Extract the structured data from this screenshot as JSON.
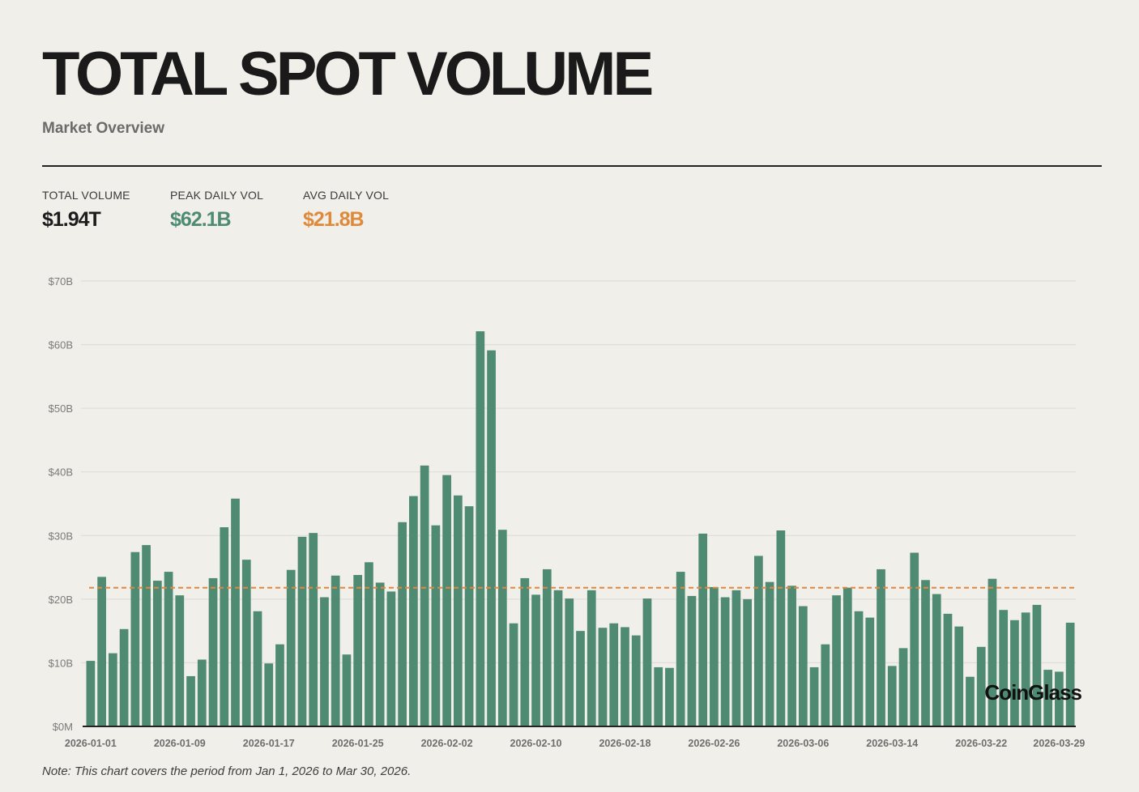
{
  "header": {
    "title": "TOTAL SPOT VOLUME",
    "subtitle": "Market Overview"
  },
  "stats": {
    "total": {
      "label": "TOTAL VOLUME",
      "value": "$1.94T"
    },
    "peak": {
      "label": "PEAK DAILY VOL",
      "value": "$62.1B"
    },
    "avg": {
      "label": "AVG DAILY VOL",
      "value": "$21.8B"
    }
  },
  "colors": {
    "bar": "#4e8b72",
    "avg_line": "#e0883f",
    "total": "#1c1c1c",
    "peak": "#4e8b72",
    "avg": "#df8a3a",
    "grid": "#dcdad4"
  },
  "watermark": "CoinGlass",
  "note": "Note: This chart covers the period from Jan 1, 2026 to Mar 30, 2026.",
  "chart_data": {
    "type": "bar",
    "title": "TOTAL SPOT VOLUME",
    "xlabel": "",
    "ylabel": "",
    "ylim": [
      0,
      70
    ],
    "unit": "B",
    "grid": true,
    "y_ticks": [
      {
        "value": 0,
        "label": "$0M"
      },
      {
        "value": 10,
        "label": "$10B"
      },
      {
        "value": 20,
        "label": "$20B"
      },
      {
        "value": 30,
        "label": "$30B"
      },
      {
        "value": 40,
        "label": "$40B"
      },
      {
        "value": 50,
        "label": "$50B"
      },
      {
        "value": 60,
        "label": "$60B"
      },
      {
        "value": 70,
        "label": "$70B"
      }
    ],
    "x_tick_labels": [
      {
        "index": 0,
        "label": "2026-01-01"
      },
      {
        "index": 8,
        "label": "2026-01-09"
      },
      {
        "index": 16,
        "label": "2026-01-17"
      },
      {
        "index": 24,
        "label": "2026-01-25"
      },
      {
        "index": 32,
        "label": "2026-02-02"
      },
      {
        "index": 40,
        "label": "2026-02-10"
      },
      {
        "index": 48,
        "label": "2026-02-18"
      },
      {
        "index": 56,
        "label": "2026-02-26"
      },
      {
        "index": 64,
        "label": "2026-03-06"
      },
      {
        "index": 72,
        "label": "2026-03-14"
      },
      {
        "index": 80,
        "label": "2026-03-22"
      },
      {
        "index": 87,
        "label": "2026-03-29"
      }
    ],
    "average": 21.8,
    "values": [
      10.3,
      23.5,
      11.5,
      15.3,
      27.4,
      28.5,
      22.9,
      24.3,
      20.6,
      7.9,
      10.5,
      23.3,
      31.3,
      35.8,
      26.2,
      18.1,
      9.9,
      12.9,
      24.6,
      29.8,
      30.4,
      20.3,
      23.7,
      11.3,
      23.8,
      25.8,
      22.6,
      21.2,
      32.1,
      36.2,
      41.0,
      31.6,
      39.5,
      36.3,
      34.6,
      62.1,
      59.1,
      30.9,
      16.2,
      23.3,
      20.7,
      24.7,
      21.4,
      20.1,
      15.0,
      21.4,
      15.5,
      16.2,
      15.6,
      14.3,
      20.1,
      9.3,
      9.2,
      24.3,
      20.5,
      30.3,
      21.9,
      20.3,
      21.4,
      20.0,
      26.8,
      22.7,
      30.8,
      22.1,
      18.9,
      9.3,
      12.9,
      20.6,
      21.8,
      18.1,
      17.1,
      24.7,
      9.5,
      12.3,
      27.3,
      23.0,
      20.8,
      17.7,
      15.7,
      7.8,
      12.5,
      23.2,
      18.3,
      16.7,
      17.9,
      19.1,
      8.9,
      8.6,
      16.3
    ]
  }
}
